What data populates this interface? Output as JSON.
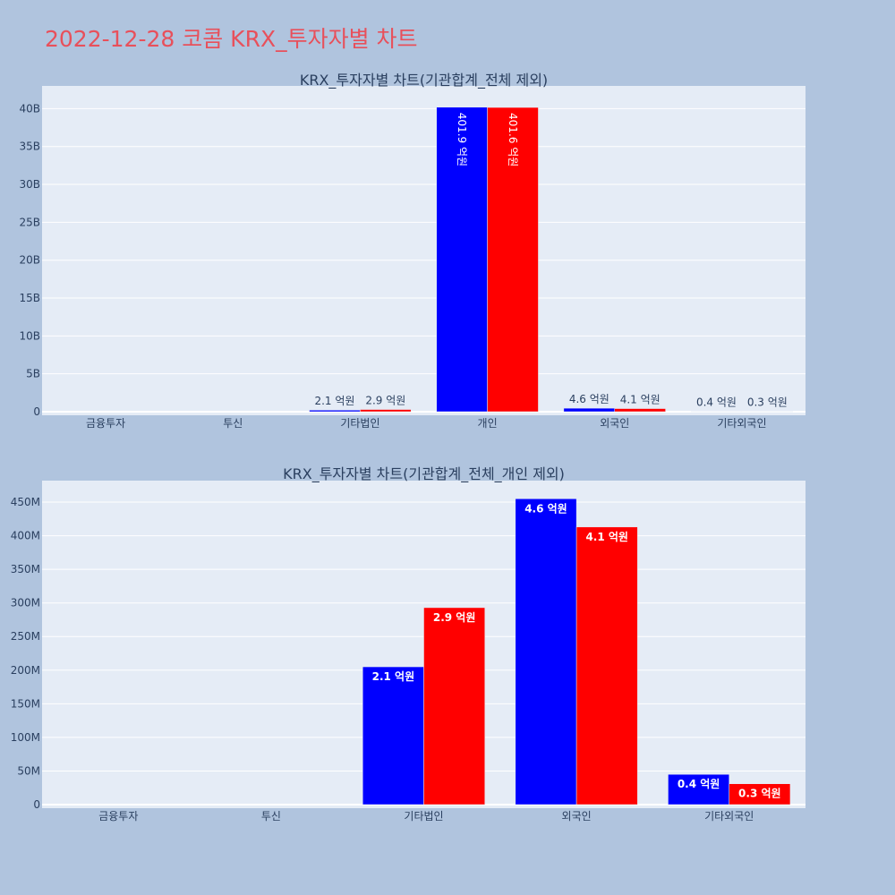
{
  "page_title": "2022-12-28 코콤 KRX_투자자별 차트",
  "colors": {
    "background": "#b0c4de",
    "plot_bg": "#e5ecf6",
    "title": "#e8505b",
    "series_a": "#0000ff",
    "series_b": "#ff0000"
  },
  "chart_data": [
    {
      "type": "bar",
      "title": "KRX_투자자별 차트(기관합계_전체 제외)",
      "categories": [
        "금융투자",
        "투신",
        "기타법인",
        "개인",
        "외국인",
        "기타외국인"
      ],
      "ylim": [
        0,
        43000000000
      ],
      "yticks": [
        0,
        5000000000,
        10000000000,
        15000000000,
        20000000000,
        25000000000,
        30000000000,
        35000000000,
        40000000000
      ],
      "ytick_labels": [
        "0",
        "5B",
        "10B",
        "15B",
        "20B",
        "25B",
        "30B",
        "35B",
        "40B"
      ],
      "grid": true,
      "label_mode": "outside_or_rotated",
      "series": [
        {
          "color": "#0000ff",
          "values": [
            0,
            0,
            210000000,
            40190000000,
            460000000,
            40000000
          ],
          "labels": [
            "",
            "",
            "2.1 억원",
            "401.9 억원",
            "4.6 억원",
            "0.4 억원"
          ]
        },
        {
          "color": "#ff0000",
          "values": [
            0,
            0,
            290000000,
            40160000000,
            410000000,
            30000000
          ],
          "labels": [
            "",
            "",
            "2.9 억원",
            "401.6 억원",
            "4.1 억원",
            "0.3 억원"
          ]
        }
      ]
    },
    {
      "type": "bar",
      "title": "KRX_투자자별 차트(기관합계_전체_개인 제외)",
      "categories": [
        "금융투자",
        "투신",
        "기타법인",
        "외국인",
        "기타외국인"
      ],
      "ylim": [
        0,
        482000000
      ],
      "yticks": [
        0,
        50000000,
        100000000,
        150000000,
        200000000,
        250000000,
        300000000,
        350000000,
        400000000,
        450000000
      ],
      "ytick_labels": [
        "0",
        "50M",
        "100M",
        "150M",
        "200M",
        "250M",
        "300M",
        "350M",
        "400M",
        "450M"
      ],
      "grid": true,
      "label_mode": "inside",
      "series": [
        {
          "color": "#0000ff",
          "values": [
            0,
            0,
            205000000,
            455000000,
            45000000
          ],
          "labels": [
            "",
            "",
            "2.1 억원",
            "4.6 억원",
            "0.4 억원"
          ]
        },
        {
          "color": "#ff0000",
          "values": [
            0,
            0,
            293000000,
            413000000,
            31000000
          ],
          "labels": [
            "",
            "",
            "2.9 억원",
            "4.1 억원",
            "0.3 억원"
          ]
        }
      ]
    }
  ]
}
